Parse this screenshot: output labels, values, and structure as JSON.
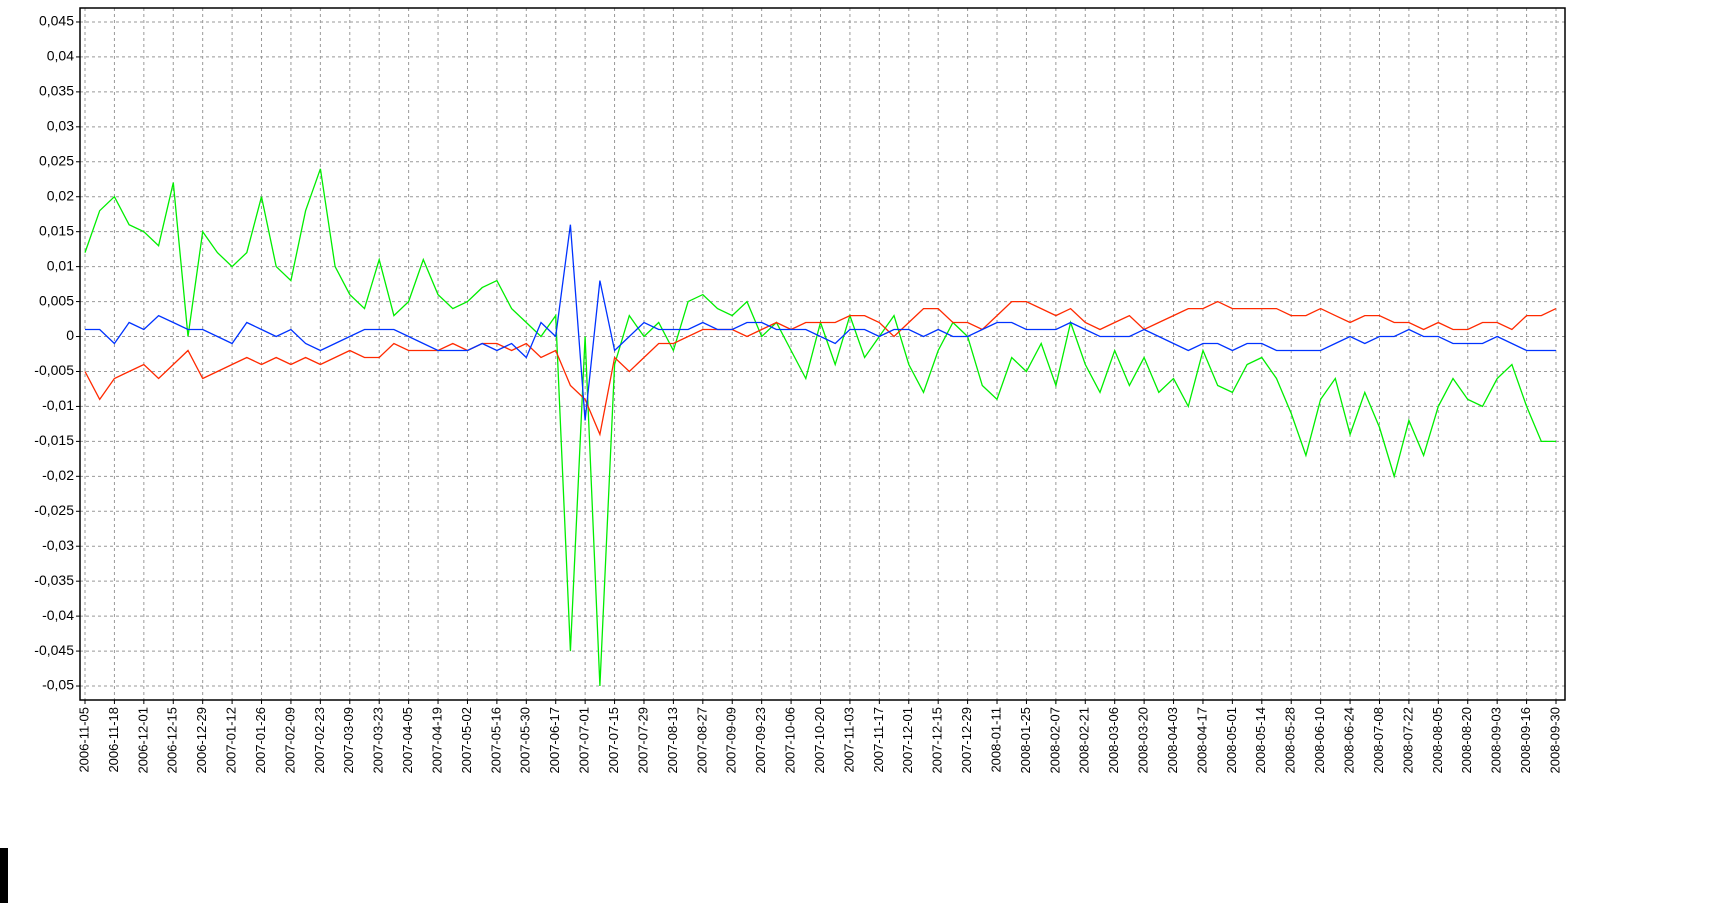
{
  "chart_data": {
    "type": "line",
    "categories": [
      "2006-11-05",
      null,
      "2006-11-18",
      null,
      "2006-12-01",
      null,
      "2006-12-15",
      null,
      "2006-12-29",
      null,
      "2007-01-12",
      null,
      "2007-01-26",
      null,
      "2007-02-09",
      null,
      "2007-02-23",
      null,
      "2007-03-09",
      null,
      "2007-03-23",
      null,
      "2007-04-05",
      null,
      "2007-04-19",
      null,
      "2007-05-02",
      null,
      "2007-05-16",
      null,
      "2007-05-30",
      null,
      "2007-06-17",
      null,
      "2007-07-01",
      null,
      "2007-07-15",
      null,
      "2007-07-29",
      null,
      "2007-08-13",
      null,
      "2007-08-27",
      null,
      "2007-09-09",
      null,
      "2007-09-23",
      null,
      "2007-10-06",
      null,
      "2007-10-20",
      null,
      "2007-11-03",
      null,
      "2007-11-17",
      null,
      "2007-12-01",
      null,
      "2007-12-15",
      null,
      "2007-12-29",
      null,
      "2008-01-11",
      null,
      "2008-01-25",
      null,
      "2008-02-07",
      null,
      "2008-02-21",
      null,
      "2008-03-06",
      null,
      "2008-03-20",
      null,
      "2008-04-03",
      null,
      "2008-04-17",
      null,
      "2008-05-01",
      null,
      "2008-05-14",
      null,
      "2008-05-28",
      null,
      "2008-06-10",
      null,
      "2008-06-24",
      null,
      "2008-07-08",
      null,
      "2008-07-22",
      null,
      "2008-08-05",
      null,
      "2008-08-20",
      null,
      "2008-09-03",
      null,
      "2008-09-16",
      null,
      "2008-09-30"
    ],
    "series": [
      {
        "color": "#00ee00",
        "values": [
          0.012,
          0.018,
          0.02,
          0.016,
          0.015,
          0.013,
          0.022,
          0.0,
          0.015,
          0.012,
          0.01,
          0.012,
          0.02,
          0.01,
          0.008,
          0.018,
          0.024,
          0.01,
          0.006,
          0.004,
          0.011,
          0.003,
          0.005,
          0.011,
          0.006,
          0.004,
          0.005,
          0.007,
          0.008,
          0.004,
          0.002,
          0.0,
          0.003,
          -0.045,
          0.0,
          -0.05,
          -0.004,
          0.003,
          0.0,
          0.002,
          -0.002,
          0.005,
          0.006,
          0.004,
          0.003,
          0.005,
          0.0,
          0.002,
          -0.002,
          -0.006,
          0.002,
          -0.004,
          0.003,
          -0.003,
          0.0,
          0.003,
          -0.004,
          -0.008,
          -0.002,
          0.002,
          0.0,
          -0.007,
          -0.009,
          -0.003,
          -0.005,
          -0.001,
          -0.007,
          0.002,
          -0.004,
          -0.008,
          -0.002,
          -0.007,
          -0.003,
          -0.008,
          -0.006,
          -0.01,
          -0.002,
          -0.007,
          -0.008,
          -0.004,
          -0.003,
          -0.006,
          -0.011,
          -0.017,
          -0.009,
          -0.006,
          -0.014,
          -0.008,
          -0.013,
          -0.02,
          -0.012,
          -0.017,
          -0.01,
          -0.006,
          -0.009,
          -0.01,
          -0.006,
          -0.004,
          -0.01,
          -0.015,
          -0.015
        ]
      },
      {
        "color": "#ff2a00",
        "values": [
          -0.005,
          -0.009,
          -0.006,
          -0.005,
          -0.004,
          -0.006,
          -0.004,
          -0.002,
          -0.006,
          -0.005,
          -0.004,
          -0.003,
          -0.004,
          -0.003,
          -0.004,
          -0.003,
          -0.004,
          -0.003,
          -0.002,
          -0.003,
          -0.003,
          -0.001,
          -0.002,
          -0.002,
          -0.002,
          -0.001,
          -0.002,
          -0.001,
          -0.001,
          -0.002,
          -0.001,
          -0.003,
          -0.002,
          -0.007,
          -0.009,
          -0.014,
          -0.003,
          -0.005,
          -0.003,
          -0.001,
          -0.001,
          0.0,
          0.001,
          0.001,
          0.001,
          0.0,
          0.001,
          0.002,
          0.001,
          0.002,
          0.002,
          0.002,
          0.003,
          0.003,
          0.002,
          0.0,
          0.002,
          0.004,
          0.004,
          0.002,
          0.002,
          0.001,
          0.003,
          0.005,
          0.005,
          0.004,
          0.003,
          0.004,
          0.002,
          0.001,
          0.002,
          0.003,
          0.001,
          0.002,
          0.003,
          0.004,
          0.004,
          0.005,
          0.004,
          0.004,
          0.004,
          0.004,
          0.003,
          0.003,
          0.004,
          0.003,
          0.002,
          0.003,
          0.003,
          0.002,
          0.002,
          0.001,
          0.002,
          0.001,
          0.001,
          0.002,
          0.002,
          0.001,
          0.003,
          0.003,
          0.004
        ]
      },
      {
        "color": "#0033ff",
        "values": [
          0.001,
          0.001,
          -0.001,
          0.002,
          0.001,
          0.003,
          0.002,
          0.001,
          0.001,
          0.0,
          -0.001,
          0.002,
          0.001,
          0.0,
          0.001,
          -0.001,
          -0.002,
          -0.001,
          0.0,
          0.001,
          0.001,
          0.001,
          0.0,
          -0.001,
          -0.002,
          -0.002,
          -0.002,
          -0.001,
          -0.002,
          -0.001,
          -0.003,
          0.002,
          0.0,
          0.016,
          -0.012,
          0.008,
          -0.002,
          0.0,
          0.002,
          0.001,
          0.001,
          0.001,
          0.002,
          0.001,
          0.001,
          0.002,
          0.002,
          0.001,
          0.001,
          0.001,
          0.0,
          -0.001,
          0.001,
          0.001,
          0.0,
          0.001,
          0.001,
          0.0,
          0.001,
          0.0,
          0.0,
          0.001,
          0.002,
          0.002,
          0.001,
          0.001,
          0.001,
          0.002,
          0.001,
          0.0,
          0.0,
          0.0,
          0.001,
          0.0,
          -0.001,
          -0.002,
          -0.001,
          -0.001,
          -0.002,
          -0.001,
          -0.001,
          -0.002,
          -0.002,
          -0.002,
          -0.002,
          -0.001,
          0.0,
          -0.001,
          0.0,
          0.0,
          0.001,
          0.0,
          0.0,
          -0.001,
          -0.001,
          -0.001,
          0.0,
          -0.001,
          -0.002,
          -0.002,
          -0.002
        ]
      }
    ],
    "ylim": [
      -0.052,
      0.047
    ],
    "yticks": [
      {
        "value": 0.045,
        "label": "0,045"
      },
      {
        "value": 0.04,
        "label": "0,04"
      },
      {
        "value": 0.035,
        "label": "0,035"
      },
      {
        "value": 0.03,
        "label": "0,03"
      },
      {
        "value": 0.025,
        "label": "0,025"
      },
      {
        "value": 0.02,
        "label": "0,02"
      },
      {
        "value": 0.015,
        "label": "0,015"
      },
      {
        "value": 0.01,
        "label": "0,01"
      },
      {
        "value": 0.005,
        "label": "0,005"
      },
      0,
      {
        "value": -0.005,
        "label": "-0,005"
      },
      {
        "value": -0.01,
        "label": "-0,01"
      },
      {
        "value": -0.015,
        "label": "-0,015"
      },
      {
        "value": -0.02,
        "label": "-0,02"
      },
      {
        "value": -0.025,
        "label": "-0,025"
      },
      {
        "value": -0.03,
        "label": "-0,03"
      },
      {
        "value": -0.035,
        "label": "-0,035"
      },
      {
        "value": -0.04,
        "label": "-0,04"
      },
      {
        "value": -0.045,
        "label": "-0,045"
      },
      {
        "value": -0.05,
        "label": "-0,05"
      }
    ],
    "grid": true
  }
}
